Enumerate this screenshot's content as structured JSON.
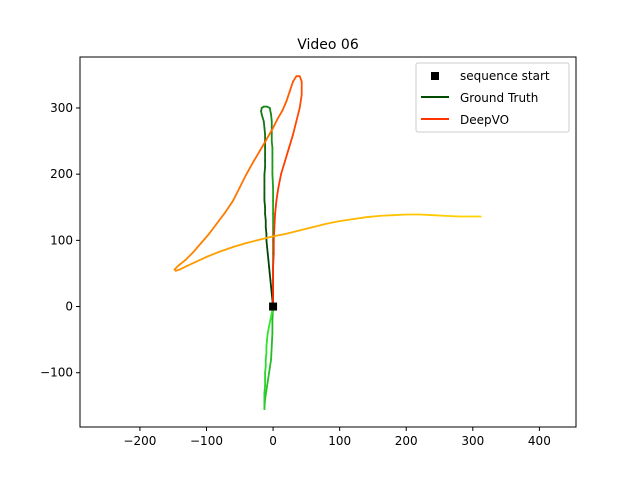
{
  "chart_data": {
    "type": "line",
    "title": "Video 06",
    "xlabel": "",
    "ylabel": "",
    "xlim": [
      -290,
      455
    ],
    "ylim": [
      -182,
      377
    ],
    "xticks": [
      -200,
      -100,
      0,
      100,
      200,
      300,
      400
    ],
    "yticks": [
      -100,
      0,
      100,
      200,
      300
    ],
    "xtick_labels": [
      "−200",
      "−100",
      "0",
      "100",
      "200",
      "300",
      "400"
    ],
    "ytick_labels": [
      "−100",
      "0",
      "100",
      "200",
      "300"
    ],
    "grid": false,
    "legend_position": "top-right",
    "legend": [
      {
        "label": "sequence start",
        "marker": "square",
        "color": "#000000"
      },
      {
        "label": "Ground Truth",
        "color": "#004d00"
      },
      {
        "label": "DeepVO",
        "color": "#ff3300"
      }
    ],
    "start_point": {
      "x": 0,
      "y": 0
    },
    "series": [
      {
        "name": "Ground Truth",
        "color_start": "#003300",
        "color_end": "#33ee33",
        "x": [
          0,
          -1,
          -2,
          -3,
          -4,
          -5,
          -6,
          -7,
          -8,
          -9,
          -10,
          -10,
          -11,
          -11,
          -12,
          -12,
          -13,
          -13,
          -13,
          -13,
          -13,
          -12,
          -12,
          -12,
          -12,
          -12,
          -12,
          -13,
          -14,
          -17,
          -18,
          -17,
          -14,
          -9,
          -5,
          -3,
          -2,
          -2,
          -2,
          -2,
          -1,
          -1,
          -1,
          -1,
          -1,
          0,
          0,
          0,
          0,
          0,
          0,
          0,
          0,
          0,
          0,
          -1,
          -1,
          -2,
          -3,
          -6,
          -9,
          -12,
          -13,
          -13,
          -13,
          -13,
          -13,
          -12,
          -12,
          -12,
          -11,
          -11,
          -10,
          -10,
          -9,
          -8,
          -6,
          -4,
          -2,
          0
        ],
        "y": [
          0,
          10,
          20,
          30,
          40,
          50,
          60,
          70,
          80,
          90,
          100,
          110,
          120,
          130,
          140,
          150,
          160,
          170,
          180,
          190,
          200,
          210,
          220,
          230,
          240,
          250,
          260,
          270,
          280,
          290,
          295,
          300,
          302,
          302,
          300,
          290,
          280,
          270,
          260,
          250,
          240,
          230,
          220,
          210,
          200,
          180,
          160,
          140,
          120,
          100,
          80,
          60,
          40,
          20,
          0,
          -20,
          -40,
          -60,
          -80,
          -100,
          -120,
          -140,
          -152,
          -155,
          -150,
          -140,
          -130,
          -120,
          -110,
          -100,
          -90,
          -80,
          -70,
          -60,
          -50,
          -40,
          -30,
          -20,
          -10,
          0
        ]
      },
      {
        "name": "DeepVO",
        "color_start": "#ff2200",
        "color_end": "#ffd400",
        "x": [
          0,
          0,
          0,
          0,
          1,
          1,
          2,
          3,
          5,
          8,
          12,
          18,
          24,
          30,
          35,
          40,
          43,
          43,
          40,
          35,
          30,
          25,
          20,
          14,
          7,
          0,
          -10,
          -20,
          -30,
          -40,
          -50,
          -60,
          -72,
          -84,
          -96,
          -108,
          -120,
          -132,
          -142,
          -148,
          -146,
          -140,
          -130,
          -115,
          -100,
          -80,
          -60,
          -40,
          -20,
          0,
          20,
          40,
          60,
          80,
          100,
          120,
          140,
          160,
          180,
          200,
          220,
          240,
          260,
          280,
          300,
          312
        ],
        "y": [
          0,
          20,
          40,
          60,
          80,
          100,
          120,
          140,
          160,
          180,
          200,
          220,
          240,
          260,
          280,
          300,
          320,
          340,
          348,
          348,
          340,
          325,
          310,
          296,
          284,
          270,
          252,
          235,
          218,
          200,
          180,
          160,
          142,
          126,
          110,
          96,
          82,
          70,
          62,
          56,
          54,
          56,
          61,
          68,
          75,
          83,
          90,
          96,
          101,
          106,
          110,
          115,
          120,
          125,
          129,
          132,
          135,
          137,
          138,
          139,
          139,
          138,
          137,
          136,
          136,
          136
        ]
      }
    ]
  }
}
